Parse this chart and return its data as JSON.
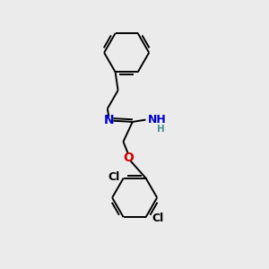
{
  "background_color": "#ebebeb",
  "atom_colors": {
    "C": "#000000",
    "N": "#0000cc",
    "O": "#cc0000",
    "Cl": "#000000",
    "H": "#4a9090"
  },
  "figsize": [
    3.0,
    3.0
  ],
  "dpi": 100
}
